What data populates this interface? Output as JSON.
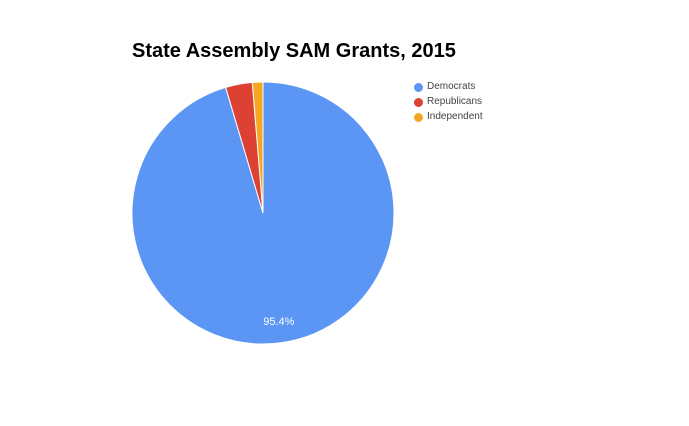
{
  "chart_data": {
    "type": "pie",
    "title": "State Assembly SAM Grants, 2015",
    "slices": [
      {
        "name": "Democrats",
        "percent": 95.4,
        "color": "#5b96f5",
        "label": "95.4%"
      },
      {
        "name": "Republicans",
        "percent": 3.3,
        "color": "#dc4133",
        "label": ""
      },
      {
        "name": "Independent",
        "percent": 1.3,
        "color": "#f5a623",
        "label": ""
      }
    ],
    "legend_placement": "right"
  }
}
